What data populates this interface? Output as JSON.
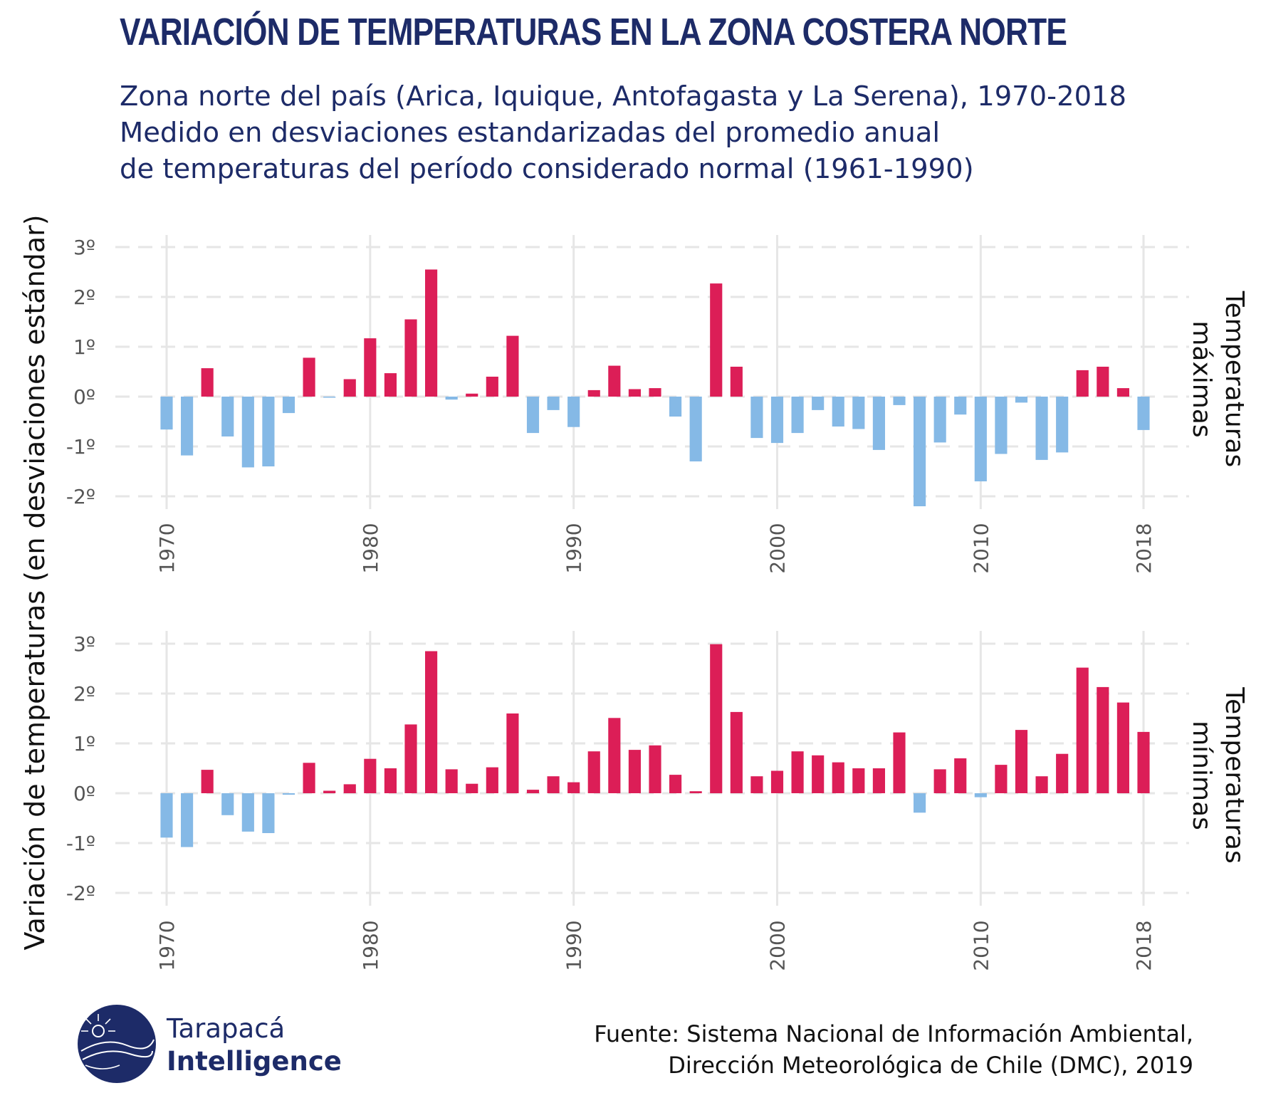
{
  "header": {
    "title": "VARIACIÓN DE TEMPERATURAS EN LA ZONA COSTERA NORTE",
    "subtitle_lines": [
      "Zona norte del país (Arica, Iquique, Antofagasta y La Serena), 1970-2018",
      "Medido en desviaciones estandarizadas del promedio anual",
      "de temperaturas del período considerado normal (1961-1990)"
    ]
  },
  "colors": {
    "positive": "#dc1e57",
    "negative": "#85b9e6",
    "grid": "#e6e6e6",
    "text_dark": "#1d2b68"
  },
  "chart_data": {
    "type": "bar",
    "ylabel": "Variación de temperaturas (en desviaciones estándar)",
    "ylim": [
      -2.3,
      3.2
    ],
    "y_ticks": [
      3,
      2,
      1,
      0,
      -1,
      -2
    ],
    "y_tick_labels": [
      "3º",
      "2º",
      "1º",
      "0º",
      "-1º",
      "-2º"
    ],
    "x_ticks": [
      1970,
      1980,
      1990,
      2000,
      2010,
      2018
    ],
    "x_tick_labels": [
      "1970",
      "1980",
      "1990",
      "2000",
      "2010",
      "2018"
    ],
    "grid": true,
    "x": [
      1970,
      1971,
      1972,
      1973,
      1974,
      1975,
      1976,
      1977,
      1978,
      1979,
      1980,
      1981,
      1982,
      1983,
      1984,
      1985,
      1986,
      1987,
      1988,
      1989,
      1990,
      1991,
      1992,
      1993,
      1994,
      1995,
      1996,
      1997,
      1998,
      1999,
      2000,
      2001,
      2002,
      2003,
      2004,
      2005,
      2006,
      2007,
      2008,
      2009,
      2010,
      2011,
      2012,
      2013,
      2014,
      2015,
      2016,
      2017,
      2018
    ],
    "panels": [
      {
        "strip_label_lines": [
          "Temperaturas",
          "máximas"
        ],
        "values": [
          -0.66,
          -1.18,
          0.57,
          -0.8,
          -1.42,
          -1.4,
          -0.33,
          0.78,
          -0.02,
          0.35,
          1.17,
          0.47,
          1.55,
          2.55,
          -0.06,
          0.06,
          0.4,
          1.22,
          -0.73,
          -0.27,
          -0.61,
          0.13,
          0.62,
          0.15,
          0.17,
          -0.4,
          -1.3,
          2.27,
          0.6,
          -0.83,
          -0.93,
          -0.73,
          -0.27,
          -0.6,
          -0.65,
          -1.07,
          -0.17,
          -2.2,
          -0.92,
          -0.36,
          -1.7,
          -1.15,
          -0.12,
          -1.27,
          -1.12,
          0.53,
          0.6,
          0.17,
          -0.67
        ]
      },
      {
        "strip_label_lines": [
          "Temperaturas",
          "mínimas"
        ],
        "values": [
          -0.89,
          -1.08,
          0.47,
          -0.44,
          -0.77,
          -0.8,
          -0.03,
          0.61,
          0.05,
          0.18,
          0.69,
          0.5,
          1.38,
          2.85,
          0.48,
          0.19,
          0.52,
          1.6,
          0.07,
          0.34,
          0.22,
          0.84,
          1.51,
          0.87,
          0.96,
          0.37,
          0.04,
          2.99,
          1.63,
          0.34,
          0.45,
          0.84,
          0.76,
          0.62,
          0.5,
          0.5,
          1.22,
          -0.39,
          0.48,
          0.7,
          -0.08,
          0.57,
          1.27,
          0.34,
          0.79,
          2.52,
          2.13,
          1.82,
          1.23
        ]
      }
    ]
  },
  "footer": {
    "brand_line1": "Tarapacá",
    "brand_line2": "Intelligence",
    "source_lines": [
      "Fuente: Sistema Nacional de Información Ambiental,",
      "Dirección Meteorológica de Chile (DMC), 2019"
    ]
  }
}
